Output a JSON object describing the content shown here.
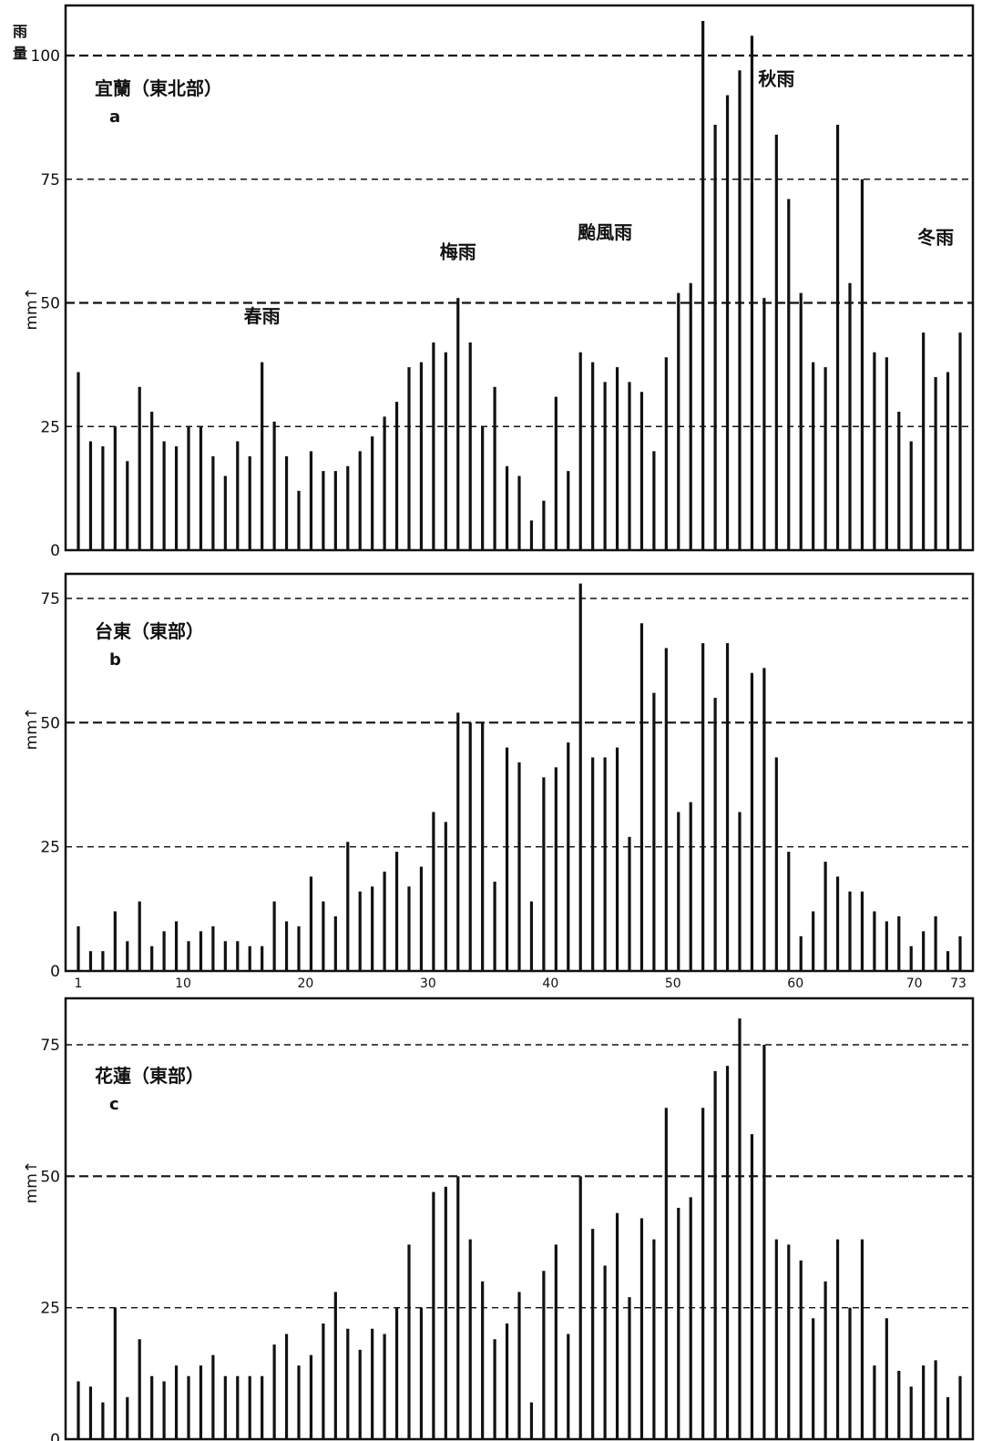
{
  "chart_data": [
    {
      "type": "bar",
      "panel": "a",
      "title": "宜蘭（東北部）",
      "ylabel": "mm↑",
      "ylabel_extra": "雨量",
      "ylim": [
        0,
        110
      ],
      "yticks": [
        0,
        25,
        50,
        75,
        100
      ],
      "grid_dashed": [
        25,
        50,
        75,
        100
      ],
      "x": [
        1,
        2,
        3,
        4,
        5,
        6,
        7,
        8,
        9,
        10,
        11,
        12,
        13,
        14,
        15,
        16,
        17,
        18,
        19,
        20,
        21,
        22,
        23,
        24,
        25,
        26,
        27,
        28,
        29,
        30,
        31,
        32,
        33,
        34,
        35,
        36,
        37,
        38,
        39,
        40,
        41,
        42,
        43,
        44,
        45,
        46,
        47,
        48,
        49,
        50,
        51,
        52,
        53,
        54,
        55,
        56,
        57,
        58,
        59,
        60,
        61,
        62,
        63,
        64,
        65,
        66,
        67,
        68,
        69,
        70,
        71,
        72,
        73
      ],
      "values": [
        36,
        22,
        21,
        25,
        18,
        33,
        28,
        22,
        21,
        25,
        25,
        19,
        15,
        22,
        19,
        38,
        26,
        19,
        12,
        20,
        16,
        16,
        17,
        20,
        23,
        27,
        30,
        37,
        38,
        42,
        40,
        51,
        42,
        25,
        33,
        17,
        15,
        6,
        10,
        31,
        16,
        40,
        38,
        34,
        37,
        34,
        32,
        20,
        39,
        52,
        54,
        107,
        86,
        92,
        97,
        104,
        51,
        84,
        71,
        52,
        38,
        37,
        86,
        54,
        75,
        40,
        39,
        28,
        22,
        44,
        35,
        36,
        44
      ],
      "annotations": [
        {
          "text": "春雨",
          "x": 16,
          "y": 46
        },
        {
          "text": "梅雨",
          "x": 32,
          "y": 59
        },
        {
          "text": "颱風雨",
          "x": 44,
          "y": 63
        },
        {
          "text": "秋雨",
          "x": 58,
          "y": 94
        },
        {
          "text": "冬雨",
          "x": 71,
          "y": 62
        }
      ]
    },
    {
      "type": "bar",
      "panel": "b",
      "title": "台東（東部）",
      "ylabel": "mm↑",
      "ylim": [
        0,
        80
      ],
      "yticks": [
        0,
        25,
        50,
        75
      ],
      "grid_dashed": [
        25,
        50,
        75
      ],
      "x": [
        1,
        2,
        3,
        4,
        5,
        6,
        7,
        8,
        9,
        10,
        11,
        12,
        13,
        14,
        15,
        16,
        17,
        18,
        19,
        20,
        21,
        22,
        23,
        24,
        25,
        26,
        27,
        28,
        29,
        30,
        31,
        32,
        33,
        34,
        35,
        36,
        37,
        38,
        39,
        40,
        41,
        42,
        43,
        44,
        45,
        46,
        47,
        48,
        49,
        50,
        51,
        52,
        53,
        54,
        55,
        56,
        57,
        58,
        59,
        60,
        61,
        62,
        63,
        64,
        65,
        66,
        67,
        68,
        69,
        70,
        71,
        72,
        73
      ],
      "xticks": [
        "1",
        "10",
        "20",
        "30",
        "40",
        "50",
        "60",
        "70",
        "73"
      ],
      "values": [
        9,
        4,
        4,
        12,
        6,
        14,
        5,
        8,
        10,
        6,
        8,
        9,
        6,
        6,
        5,
        5,
        14,
        10,
        9,
        19,
        14,
        11,
        26,
        16,
        17,
        20,
        24,
        17,
        21,
        32,
        30,
        52,
        50,
        50,
        18,
        45,
        42,
        14,
        39,
        41,
        46,
        78,
        43,
        43,
        45,
        27,
        70,
        56,
        65,
        32,
        34,
        66,
        55,
        66,
        32,
        60,
        61,
        43,
        24,
        7,
        12,
        22,
        19,
        16,
        16,
        12,
        10,
        11,
        5,
        8,
        11,
        4,
        7
      ]
    },
    {
      "type": "bar",
      "panel": "c",
      "title": "花蓮（東部）",
      "ylabel": "mm↑",
      "ylim": [
        0,
        85
      ],
      "yticks": [
        0,
        25,
        50,
        75
      ],
      "grid_dashed": [
        25,
        50,
        75
      ],
      "x": [
        1,
        2,
        3,
        4,
        5,
        6,
        7,
        8,
        9,
        10,
        11,
        12,
        13,
        14,
        15,
        16,
        17,
        18,
        19,
        20,
        21,
        22,
        23,
        24,
        25,
        26,
        27,
        28,
        29,
        30,
        31,
        32,
        33,
        34,
        35,
        36,
        37,
        38,
        39,
        40,
        41,
        42,
        43,
        44,
        45,
        46,
        47,
        48,
        49,
        50,
        51,
        52,
        53,
        54,
        55,
        56,
        57,
        58,
        59,
        60,
        61,
        62,
        63,
        64,
        65,
        66,
        67,
        68,
        69,
        70,
        71,
        72,
        73
      ],
      "values": [
        11,
        10,
        7,
        25,
        8,
        19,
        12,
        11,
        14,
        12,
        14,
        16,
        12,
        12,
        12,
        12,
        18,
        20,
        14,
        16,
        22,
        28,
        21,
        17,
        21,
        20,
        25,
        37,
        25,
        47,
        48,
        50,
        38,
        30,
        19,
        22,
        28,
        7,
        32,
        37,
        20,
        50,
        40,
        33,
        43,
        27,
        42,
        38,
        63,
        44,
        46,
        63,
        70,
        71,
        80,
        58,
        75,
        38,
        37,
        34,
        23,
        30,
        38,
        25,
        38,
        14,
        23,
        13,
        10,
        14,
        15,
        8,
        12
      ]
    }
  ]
}
